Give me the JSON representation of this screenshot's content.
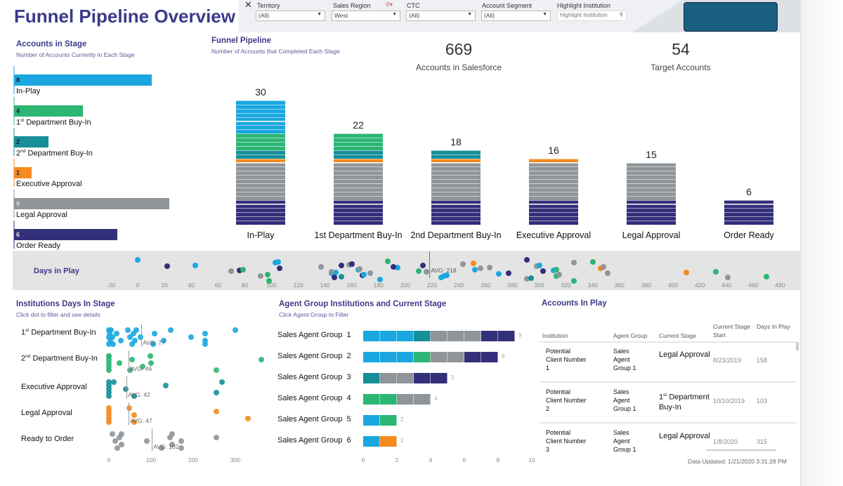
{
  "header": {
    "title": "Funnel Pipeline Overview",
    "filters": [
      {
        "label": "Territory",
        "value": "(All)"
      },
      {
        "label": "Sales Region",
        "value": "West"
      },
      {
        "label": "CTC",
        "value": "(All)"
      },
      {
        "label": "Account Segment",
        "value": "(All)"
      }
    ],
    "highlight": {
      "label": "Highlight Institution",
      "placeholder": "Highlight Institution"
    }
  },
  "colors": {
    "In-Play": "#1aa7e0",
    "1st Department Buy-In": "#2bb673",
    "2nd Department Buy-In": "#178f99",
    "Executive Approval": "#f58a1f",
    "Legal Approval": "#8f9599",
    "Order Ready": "#332f7a"
  },
  "accounts_in_stage": {
    "title": "Accounts in Stage",
    "subtitle": "Number of Accounts Currently in Each Stage",
    "items": [
      {
        "label": "In-Play",
        "value": 8,
        "color": "#1aa7e0"
      },
      {
        "label": "1st Department Buy-In",
        "value": 4,
        "color": "#2bb673"
      },
      {
        "label": "2nd Department Buy-In",
        "value": 2,
        "color": "#178f99"
      },
      {
        "label": "Executive Approval",
        "value": 1,
        "color": "#f58a1f"
      },
      {
        "label": "Legal Approval",
        "value": 9,
        "color": "#8f9599"
      },
      {
        "label": "Order Ready",
        "value": 6,
        "color": "#332f7a"
      }
    ]
  },
  "funnel": {
    "title": "Funnel Pipeline",
    "subtitle": "Number of Accounts that Completed Each Stage",
    "stages": [
      {
        "label": "In-Play",
        "total": 30
      },
      {
        "label": "1st Department Buy-In",
        "total": 22
      },
      {
        "label": "2nd Department Buy-In",
        "total": 18
      },
      {
        "label": "Executive Approval",
        "total": 16
      },
      {
        "label": "Legal Approval",
        "total": 15
      },
      {
        "label": "Order Ready",
        "total": 6
      }
    ]
  },
  "kpis": [
    {
      "value": "669",
      "label": "Accounts in Salesforce"
    },
    {
      "value": "54",
      "label": "Target Accounts"
    }
  ],
  "days_in_play": {
    "label": "Days in Play",
    "avg_label": "AVG: 218",
    "avg": 218,
    "ticks": [
      "-20",
      "0",
      "20",
      "40",
      "60",
      "80",
      "100",
      "120",
      "140",
      "160",
      "180",
      "200",
      "220",
      "240",
      "260",
      "280",
      "300",
      "320",
      "340",
      "360",
      "380",
      "400",
      "420",
      "440",
      "460",
      "480"
    ],
    "points": [
      [
        0,
        "In-Play"
      ],
      [
        22,
        "Order Ready"
      ],
      [
        43,
        "In-Play"
      ],
      [
        70,
        "Legal Approval"
      ],
      [
        76,
        "Order Ready"
      ],
      [
        79,
        "1st Department Buy-In"
      ],
      [
        92,
        "Legal Approval"
      ],
      [
        97,
        "1st Department Buy-In"
      ],
      [
        98,
        "1st Department Buy-In"
      ],
      [
        103,
        "In-Play"
      ],
      [
        105,
        "In-Play"
      ],
      [
        106,
        "Order Ready"
      ],
      [
        137,
        "Legal Approval"
      ],
      [
        145,
        "In-Play"
      ],
      [
        148,
        "In-Play"
      ],
      [
        145,
        "Legal Approval"
      ],
      [
        147,
        "Order Ready"
      ],
      [
        152,
        "2nd Department Buy-In"
      ],
      [
        152,
        "Order Ready"
      ],
      [
        158,
        "Legal Approval"
      ],
      [
        160,
        "Order Ready"
      ],
      [
        165,
        "In-Play"
      ],
      [
        166,
        "Legal Approval"
      ],
      [
        168,
        "Order Ready"
      ],
      [
        169,
        "In-Play"
      ],
      [
        174,
        "Legal Approval"
      ],
      [
        181,
        "In-Play"
      ],
      [
        187,
        "1st Department Buy-In"
      ],
      [
        194,
        "In-Play"
      ],
      [
        191,
        "Order Ready"
      ],
      [
        213,
        "Order Ready"
      ],
      [
        216,
        "Legal Approval"
      ],
      [
        210,
        "1st Department Buy-In"
      ],
      [
        227,
        "In-Play"
      ],
      [
        229,
        "In-Play"
      ],
      [
        231,
        "In-Play"
      ],
      [
        243,
        "Legal Approval"
      ],
      [
        251,
        "Executive Approval"
      ],
      [
        252,
        "In-Play"
      ],
      [
        256,
        "Legal Approval"
      ],
      [
        263,
        "Legal Approval"
      ],
      [
        270,
        "In-Play"
      ],
      [
        277,
        "Order Ready"
      ],
      [
        291,
        "Legal Approval"
      ],
      [
        294,
        "2nd Department Buy-In"
      ],
      [
        291,
        "Order Ready"
      ],
      [
        298,
        "Legal Approval"
      ],
      [
        300,
        "In-Play"
      ],
      [
        303,
        "Order Ready"
      ],
      [
        311,
        "In-Play"
      ],
      [
        313,
        "1st Department Buy-In"
      ],
      [
        313,
        "1st Department Buy-In"
      ],
      [
        315,
        "Legal Approval"
      ],
      [
        326,
        "1st Department Buy-In"
      ],
      [
        326,
        "Legal Approval"
      ],
      [
        340,
        "1st Department Buy-In"
      ],
      [
        346,
        "Executive Approval"
      ],
      [
        348,
        "Legal Approval"
      ],
      [
        351,
        "Legal Approval"
      ],
      [
        410,
        "Executive Approval"
      ],
      [
        432,
        "1st Department Buy-In"
      ],
      [
        441,
        "Legal Approval"
      ],
      [
        470,
        "1st Department Buy-In"
      ]
    ]
  },
  "days_in_stage": {
    "title": "Institutions Days In Stage",
    "subtitle": "Click dot to filter and see details",
    "ticks": [
      "0",
      "100",
      "200",
      "300"
    ],
    "rows": [
      {
        "label": "1st Department Buy-In",
        "color": "#1aa7e0",
        "avg": 77,
        "avg_label": "AVG: 77",
        "values": [
          0,
          0,
          0,
          2,
          3,
          5,
          8,
          10,
          18,
          28,
          45,
          50,
          55,
          58,
          62,
          65,
          75,
          105,
          108,
          130,
          147,
          195,
          228,
          228,
          228,
          300
        ]
      },
      {
        "label": "2nd Department Buy-In",
        "color": "#2bb673",
        "avg": 46,
        "avg_label": "AVG: 46",
        "values": [
          0,
          0,
          0,
          0,
          0,
          0,
          25,
          50,
          55,
          80,
          98,
          100,
          255,
          362
        ]
      },
      {
        "label": "Executive Approval",
        "color": "#178f99",
        "avg": 42,
        "avg_label": "AVG: 42",
        "values": [
          0,
          0,
          0,
          0,
          0,
          12,
          40,
          60,
          135,
          255,
          268
        ]
      },
      {
        "label": "Legal Approval",
        "color": "#f58a1f",
        "avg": 47,
        "avg_label": "AVG: 47",
        "values": [
          0,
          0,
          0,
          0,
          0,
          48,
          60,
          60,
          255,
          330
        ]
      },
      {
        "label": "Ready to Order",
        "color": "#8f9599",
        "avg": 102,
        "avg_label": "AVG: 102",
        "values": [
          8,
          15,
          20,
          25,
          30,
          30,
          90,
          125,
          145,
          150,
          150,
          172,
          172,
          255
        ]
      }
    ]
  },
  "agent_groups": {
    "title": "Agent Group Institutions and Current Stage",
    "subtitle": "Click Agent Group to Filter",
    "ticks": [
      "0",
      "2",
      "4",
      "6",
      "8",
      "10"
    ],
    "groups": [
      {
        "label": "Sales Agent Group  1",
        "total": "9",
        "segments": [
          [
            "In-Play",
            3
          ],
          [
            "2nd Department Buy-In",
            1
          ],
          [
            "Legal Approval",
            3
          ],
          [
            "Order Ready",
            2
          ]
        ]
      },
      {
        "label": "Sales Agent Group  2",
        "total": "8",
        "segments": [
          [
            "In-Play",
            3
          ],
          [
            "1st Department Buy-In",
            1
          ],
          [
            "Legal Approval",
            2
          ],
          [
            "Order Ready",
            2
          ]
        ]
      },
      {
        "label": "Sales Agent Group  3",
        "total": "5",
        "segments": [
          [
            "2nd Department Buy-In",
            1
          ],
          [
            "Legal Approval",
            2
          ],
          [
            "Order Ready",
            2
          ]
        ]
      },
      {
        "label": "Sales Agent Group  4",
        "total": "4",
        "segments": [
          [
            "1st Department Buy-In",
            2
          ],
          [
            "Legal Approval",
            2
          ]
        ]
      },
      {
        "label": "Sales Agent Group  5",
        "total": "2",
        "segments": [
          [
            "In-Play",
            1
          ],
          [
            "1st Department Buy-In",
            1
          ]
        ]
      },
      {
        "label": "Sales Agent Group  6",
        "total": "2",
        "segments": [
          [
            "In-Play",
            1
          ],
          [
            "Executive Approval",
            1
          ]
        ]
      }
    ]
  },
  "accounts_in_play": {
    "title": "Accounts In Play",
    "columns": [
      "Institution",
      "Agent Group",
      "Current Stage",
      "Current Stage Start",
      "Days In Play"
    ],
    "rows": [
      [
        "Potential Client Number 1",
        "Sales Agent Group 1",
        "Legal Approval",
        "8/23/2019",
        "158"
      ],
      [
        "Potential Client Number 2",
        "Sales Agent Group 1",
        "1st Department Buy-In",
        "10/10/2019",
        "103"
      ],
      [
        "Potential Client Number 3",
        "Sales Agent Group 1",
        "Legal Approval",
        "1/8/2020",
        "315"
      ]
    ],
    "updated": "Data Updated: 1/21/2020 3:31:28 PM"
  }
}
